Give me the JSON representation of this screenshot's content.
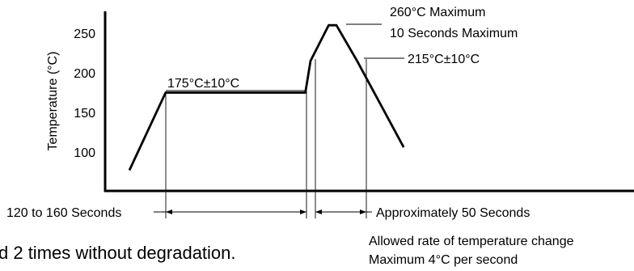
{
  "chart_data": {
    "type": "line",
    "title": "",
    "xlabel": "",
    "ylabel": "Temperature (°C)",
    "yticks": [
      100,
      150,
      200,
      250
    ],
    "ylim": [
      78,
      275
    ],
    "grid": false,
    "series": [
      {
        "values_note": "",
        "points": [
          {
            "x": 0,
            "y": 77
          },
          {
            "x": 14,
            "y": 175
          },
          {
            "x": 68,
            "y": 175
          },
          {
            "x": 70,
            "y": 215
          },
          {
            "x": 77,
            "y": 260
          },
          {
            "x": 80,
            "y": 260
          },
          {
            "x": 88,
            "y": 215
          },
          {
            "x": 106,
            "y": 106
          }
        ]
      }
    ],
    "annotations": {
      "soak": "175°C±10°C",
      "peak_line1": "260°C Maximum",
      "peak_line2": "10 Seconds Maximum",
      "reflow": "215°C±10°C",
      "preheat_time": "120 to 160 Seconds",
      "reflow_time": "Approximately 50 Seconds",
      "rate_line1": "Allowed rate of temperature change",
      "rate_line2": "Maximum 4°C per second",
      "footnote": "d 2 times without degradation."
    }
  }
}
